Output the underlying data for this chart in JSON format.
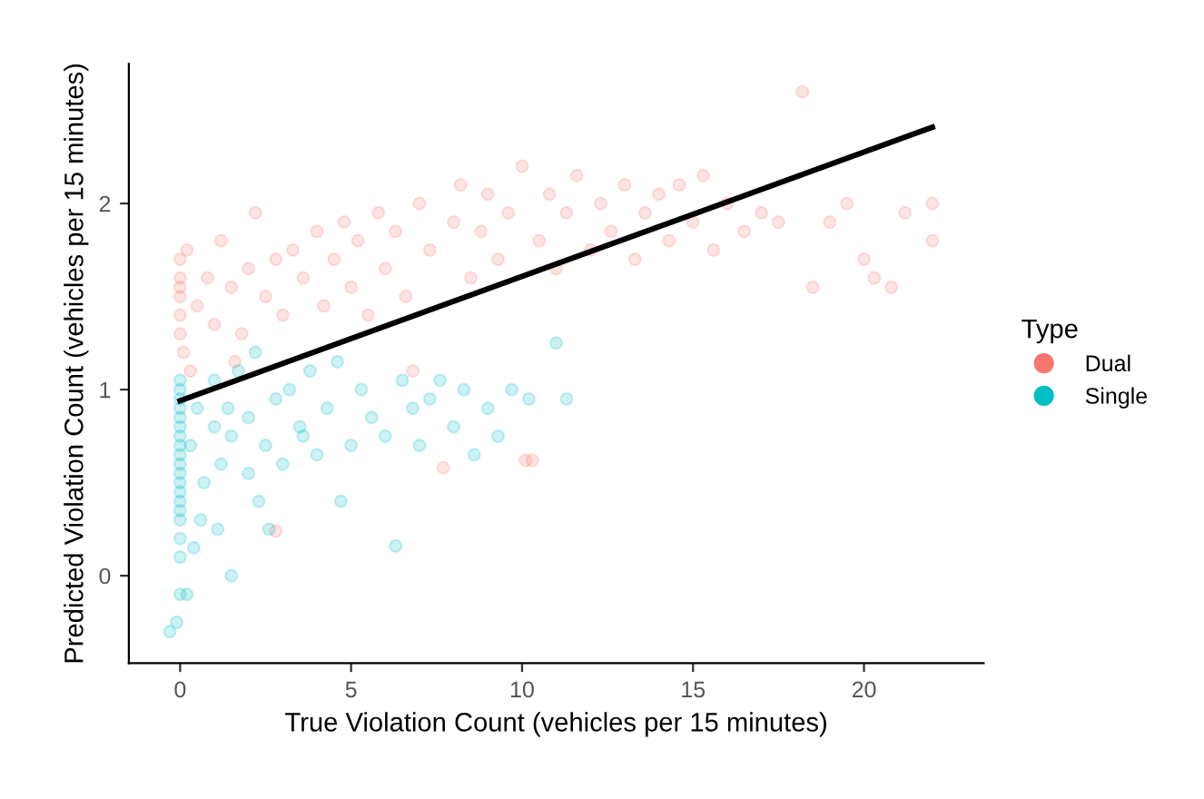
{
  "chart_data": {
    "type": "scatter",
    "xlabel": "True Violation Count (vehicles per 15 minutes)",
    "ylabel": "Predicted Violation Count (vehicles per 15 minutes)",
    "legend_title": "Type",
    "legend": "right",
    "grid": false,
    "xlim": [
      -1.5,
      23.5
    ],
    "ylim": [
      -0.47,
      2.75
    ],
    "xticks": [
      0,
      5,
      10,
      15,
      20
    ],
    "yticks": [
      0,
      1,
      2
    ],
    "series": [
      {
        "name": "Dual",
        "color": "#f8766d",
        "marker": "circle",
        "x": [
          0,
          0,
          0,
          0,
          0,
          0,
          0.1,
          0.2,
          0.5,
          0.8,
          1,
          1.2,
          1.5,
          1.8,
          2,
          2.2,
          2.5,
          2.8,
          3,
          3.3,
          3.6,
          4,
          4.2,
          4.5,
          4.8,
          5,
          5.2,
          5.5,
          5.8,
          6,
          6.3,
          6.6,
          7,
          7.3,
          7.7,
          8,
          8.2,
          8.5,
          8.8,
          9,
          9.3,
          9.6,
          10,
          10.1,
          10.3,
          10.5,
          10.8,
          11,
          11.3,
          11.6,
          12,
          12.3,
          12.6,
          13,
          13.3,
          13.6,
          14,
          14.3,
          14.6,
          15,
          15.3,
          15.6,
          16,
          16.5,
          17,
          17.5,
          18.2,
          18.5,
          19,
          19.5,
          20,
          20.3,
          20.8,
          21.2,
          22,
          22,
          2.8,
          0.3,
          1.6,
          6.8
        ],
        "values": [
          1.5,
          1.4,
          1.6,
          1.7,
          1.3,
          1.55,
          1.2,
          1.75,
          1.45,
          1.6,
          1.35,
          1.8,
          1.55,
          1.3,
          1.65,
          1.95,
          1.5,
          1.7,
          1.4,
          1.75,
          1.6,
          1.85,
          1.45,
          1.7,
          1.9,
          1.55,
          1.8,
          1.4,
          1.95,
          1.65,
          1.85,
          1.5,
          2.0,
          1.75,
          0.58,
          1.9,
          2.1,
          1.6,
          1.85,
          2.05,
          1.7,
          1.95,
          2.2,
          0.62,
          0.62,
          1.8,
          2.05,
          1.65,
          1.95,
          2.15,
          1.75,
          2.0,
          1.85,
          2.1,
          1.7,
          1.95,
          2.05,
          1.8,
          2.1,
          1.9,
          2.15,
          1.75,
          2.0,
          1.85,
          1.95,
          1.9,
          2.6,
          1.55,
          1.9,
          2.0,
          1.7,
          1.6,
          1.55,
          1.95,
          1.8,
          2.0,
          0.24,
          1.1,
          1.15,
          1.1
        ]
      },
      {
        "name": "Single",
        "color": "#00bfc4",
        "marker": "circle",
        "x": [
          0,
          0,
          0,
          0,
          0,
          0,
          0,
          0,
          0,
          0,
          0,
          0,
          0,
          0,
          0,
          0,
          0,
          0,
          -0.3,
          0,
          0.3,
          0.5,
          0.7,
          1,
          1,
          1.2,
          1.4,
          1.5,
          1.7,
          2,
          2,
          2.2,
          2.5,
          2.8,
          3,
          3.2,
          3.5,
          3.8,
          4,
          4.3,
          4.6,
          5,
          5.3,
          5.6,
          6,
          6.3,
          6.5,
          6.8,
          7,
          7.3,
          7.6,
          8,
          8.3,
          8.6,
          9,
          9.3,
          9.7,
          10.2,
          11,
          11.3,
          0.2,
          0.6,
          1.5,
          2.3,
          4.7,
          -0.1,
          0.4,
          1.1,
          2.6,
          3.6
        ],
        "values": [
          0.3,
          0.4,
          0.5,
          0.6,
          0.65,
          0.7,
          0.75,
          0.8,
          0.85,
          0.9,
          0.95,
          1.0,
          0.55,
          0.45,
          0.35,
          0.2,
          0.1,
          -0.1,
          -0.3,
          1.05,
          0.7,
          0.9,
          0.5,
          0.8,
          1.05,
          0.6,
          0.9,
          0.75,
          1.1,
          0.85,
          0.55,
          1.2,
          0.7,
          0.95,
          0.6,
          1.0,
          0.8,
          1.1,
          0.65,
          0.9,
          1.15,
          0.7,
          1.0,
          0.85,
          0.75,
          0.16,
          1.05,
          0.9,
          0.7,
          0.95,
          1.05,
          0.8,
          1.0,
          0.65,
          0.9,
          0.75,
          1.0,
          0.95,
          1.25,
          0.95,
          -0.1,
          0.3,
          0.0,
          0.4,
          0.4,
          -0.25,
          0.15,
          0.25,
          0.25,
          0.75
        ]
      },
      {
        "type": "line",
        "color": "#000000",
        "marker": "none",
        "x": [
          0,
          22
        ],
        "values": [
          0.94,
          2.41
        ]
      }
    ]
  }
}
